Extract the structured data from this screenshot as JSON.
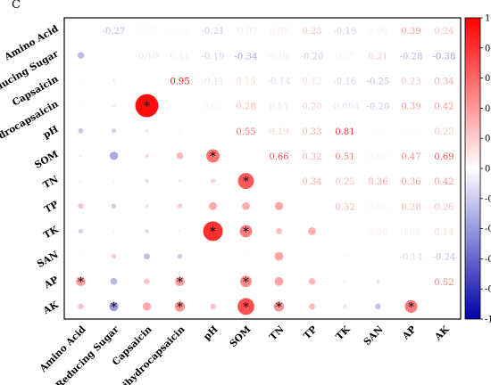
{
  "panel_label": "C",
  "chart_data": {
    "type": "heatmap",
    "subtype": "correlation-matrix",
    "variables": [
      "Amino Acid",
      "Reducing Sugar",
      "Capsaicin",
      "Dihydrocapsaicin",
      "pH",
      "SOM",
      "TN",
      "TP",
      "TK",
      "SAN",
      "AP",
      "AK"
    ],
    "significance_marker": "*",
    "upper_values": [
      [
        null,
        -0.27,
        0.05,
        0.04,
        -0.21,
        -0.07,
        0.09,
        0.23,
        -0.19,
        0.06,
        0.39,
        0.24
      ],
      [
        null,
        null,
        -0.1,
        0.11,
        -0.19,
        -0.34,
        -0.06,
        -0.2,
        0.07,
        0.21,
        -0.28,
        -0.38
      ],
      [
        null,
        null,
        null,
        0.95,
        -0.11,
        0.15,
        -0.14,
        0.12,
        -0.16,
        -0.25,
        0.23,
        0.34
      ],
      [
        null,
        null,
        null,
        null,
        0.06,
        0.28,
        0.11,
        0.2,
        -0.09,
        -0.2,
        0.39,
        0.42
      ],
      [
        null,
        null,
        null,
        null,
        null,
        0.55,
        0.19,
        0.33,
        0.81,
        -0.01,
        0.02,
        0.23
      ],
      [
        null,
        null,
        null,
        null,
        null,
        null,
        0.66,
        0.32,
        0.51,
        0.05,
        0.47,
        0.69
      ],
      [
        null,
        null,
        null,
        null,
        null,
        null,
        null,
        0.34,
        0.25,
        0.36,
        0.36,
        0.42
      ],
      [
        null,
        null,
        null,
        null,
        null,
        null,
        null,
        null,
        0.32,
        0.04,
        0.28,
        0.26
      ],
      [
        null,
        null,
        null,
        null,
        null,
        null,
        null,
        null,
        null,
        0.08,
        0.08,
        0.14
      ],
      [
        null,
        null,
        null,
        null,
        null,
        null,
        null,
        null,
        null,
        null,
        -0.14,
        -0.24
      ],
      [
        null,
        null,
        null,
        null,
        null,
        null,
        null,
        null,
        null,
        null,
        null,
        0.52
      ],
      [
        null,
        null,
        null,
        null,
        null,
        null,
        null,
        null,
        null,
        null,
        null,
        null
      ]
    ],
    "value_labels": [
      [
        "",
        "-0.27",
        "0.05",
        "0.04",
        "-0.21",
        "-0.07",
        "0.09",
        "0.23",
        "-0.19",
        "0.06",
        "0.39",
        "0.24"
      ],
      [
        "",
        "",
        "-0.10",
        "0.11",
        "-0.19",
        "-0.34",
        "-0.06",
        "-0.20",
        "0.07",
        "0.21",
        "-0.28",
        "-0.38"
      ],
      [
        "",
        "",
        "",
        "0.95",
        "-0.11",
        "0.15",
        "-0.14",
        "0.12",
        "-0.16",
        "-0.25",
        "0.23",
        "0.34"
      ],
      [
        "",
        "",
        "",
        "",
        "0.06",
        "0.28",
        "0.11",
        "0.20",
        "-0.094",
        "-0.20",
        "0.39",
        "0.42"
      ],
      [
        "",
        "",
        "",
        "",
        "",
        "0.55",
        "0.19",
        "0.33",
        "0.81",
        "-0.01",
        "0.02",
        "0.23"
      ],
      [
        "",
        "",
        "",
        "",
        "",
        "",
        "0.66",
        "0.32",
        "0.51",
        "0.05",
        "0.47",
        "0.69"
      ],
      [
        "",
        "",
        "",
        "",
        "",
        "",
        "",
        "0.34",
        "0.25",
        "0.36",
        "0.36",
        "0.42"
      ],
      [
        "",
        "",
        "",
        "",
        "",
        "",
        "",
        "",
        "0.32",
        "0.04",
        "0.28",
        "0.26"
      ],
      [
        "",
        "",
        "",
        "",
        "",
        "",
        "",
        "",
        "",
        "0.08",
        "0.08",
        "0.14"
      ],
      [
        "",
        "",
        "",
        "",
        "",
        "",
        "",
        "",
        "",
        "",
        "-0.14",
        "-0.24"
      ],
      [
        "",
        "",
        "",
        "",
        "",
        "",
        "",
        "",
        "",
        "",
        "",
        "0.52"
      ],
      [
        "",
        "",
        "",
        "",
        "",
        "",
        "",
        "",
        "",
        "",
        "",
        ""
      ]
    ],
    "significant": [
      [
        "Capsaicin",
        "Dihydrocapsaicin"
      ],
      [
        "pH",
        "SOM"
      ],
      [
        "pH",
        "TK"
      ],
      [
        "SOM",
        "TN"
      ],
      [
        "SOM",
        "TK"
      ],
      [
        "SOM",
        "AP"
      ],
      [
        "SOM",
        "AK"
      ],
      [
        "Amino Acid",
        "AP"
      ],
      [
        "Dihydrocapsaicin",
        "AP"
      ],
      [
        "Dihydrocapsaicin",
        "AK"
      ],
      [
        "Reducing Sugar",
        "AK"
      ],
      [
        "TN",
        "AK"
      ],
      [
        "AP",
        "AK"
      ]
    ],
    "colorbar": {
      "range": [
        -1,
        1
      ],
      "ticks": [
        1,
        0.8,
        0.6,
        0.4,
        0.2,
        0,
        -0.2,
        -0.4,
        -0.6,
        -0.8,
        -1
      ],
      "tick_labels": [
        "1",
        "0.8",
        "0.6",
        "0.4",
        "0.2",
        "0",
        "-0.2",
        "-0.4",
        "-0.6",
        "-0.8",
        "-1"
      ],
      "colors": {
        "positive": "#ff0000",
        "zero": "#ffffff",
        "negative": "#0000aa"
      }
    }
  }
}
